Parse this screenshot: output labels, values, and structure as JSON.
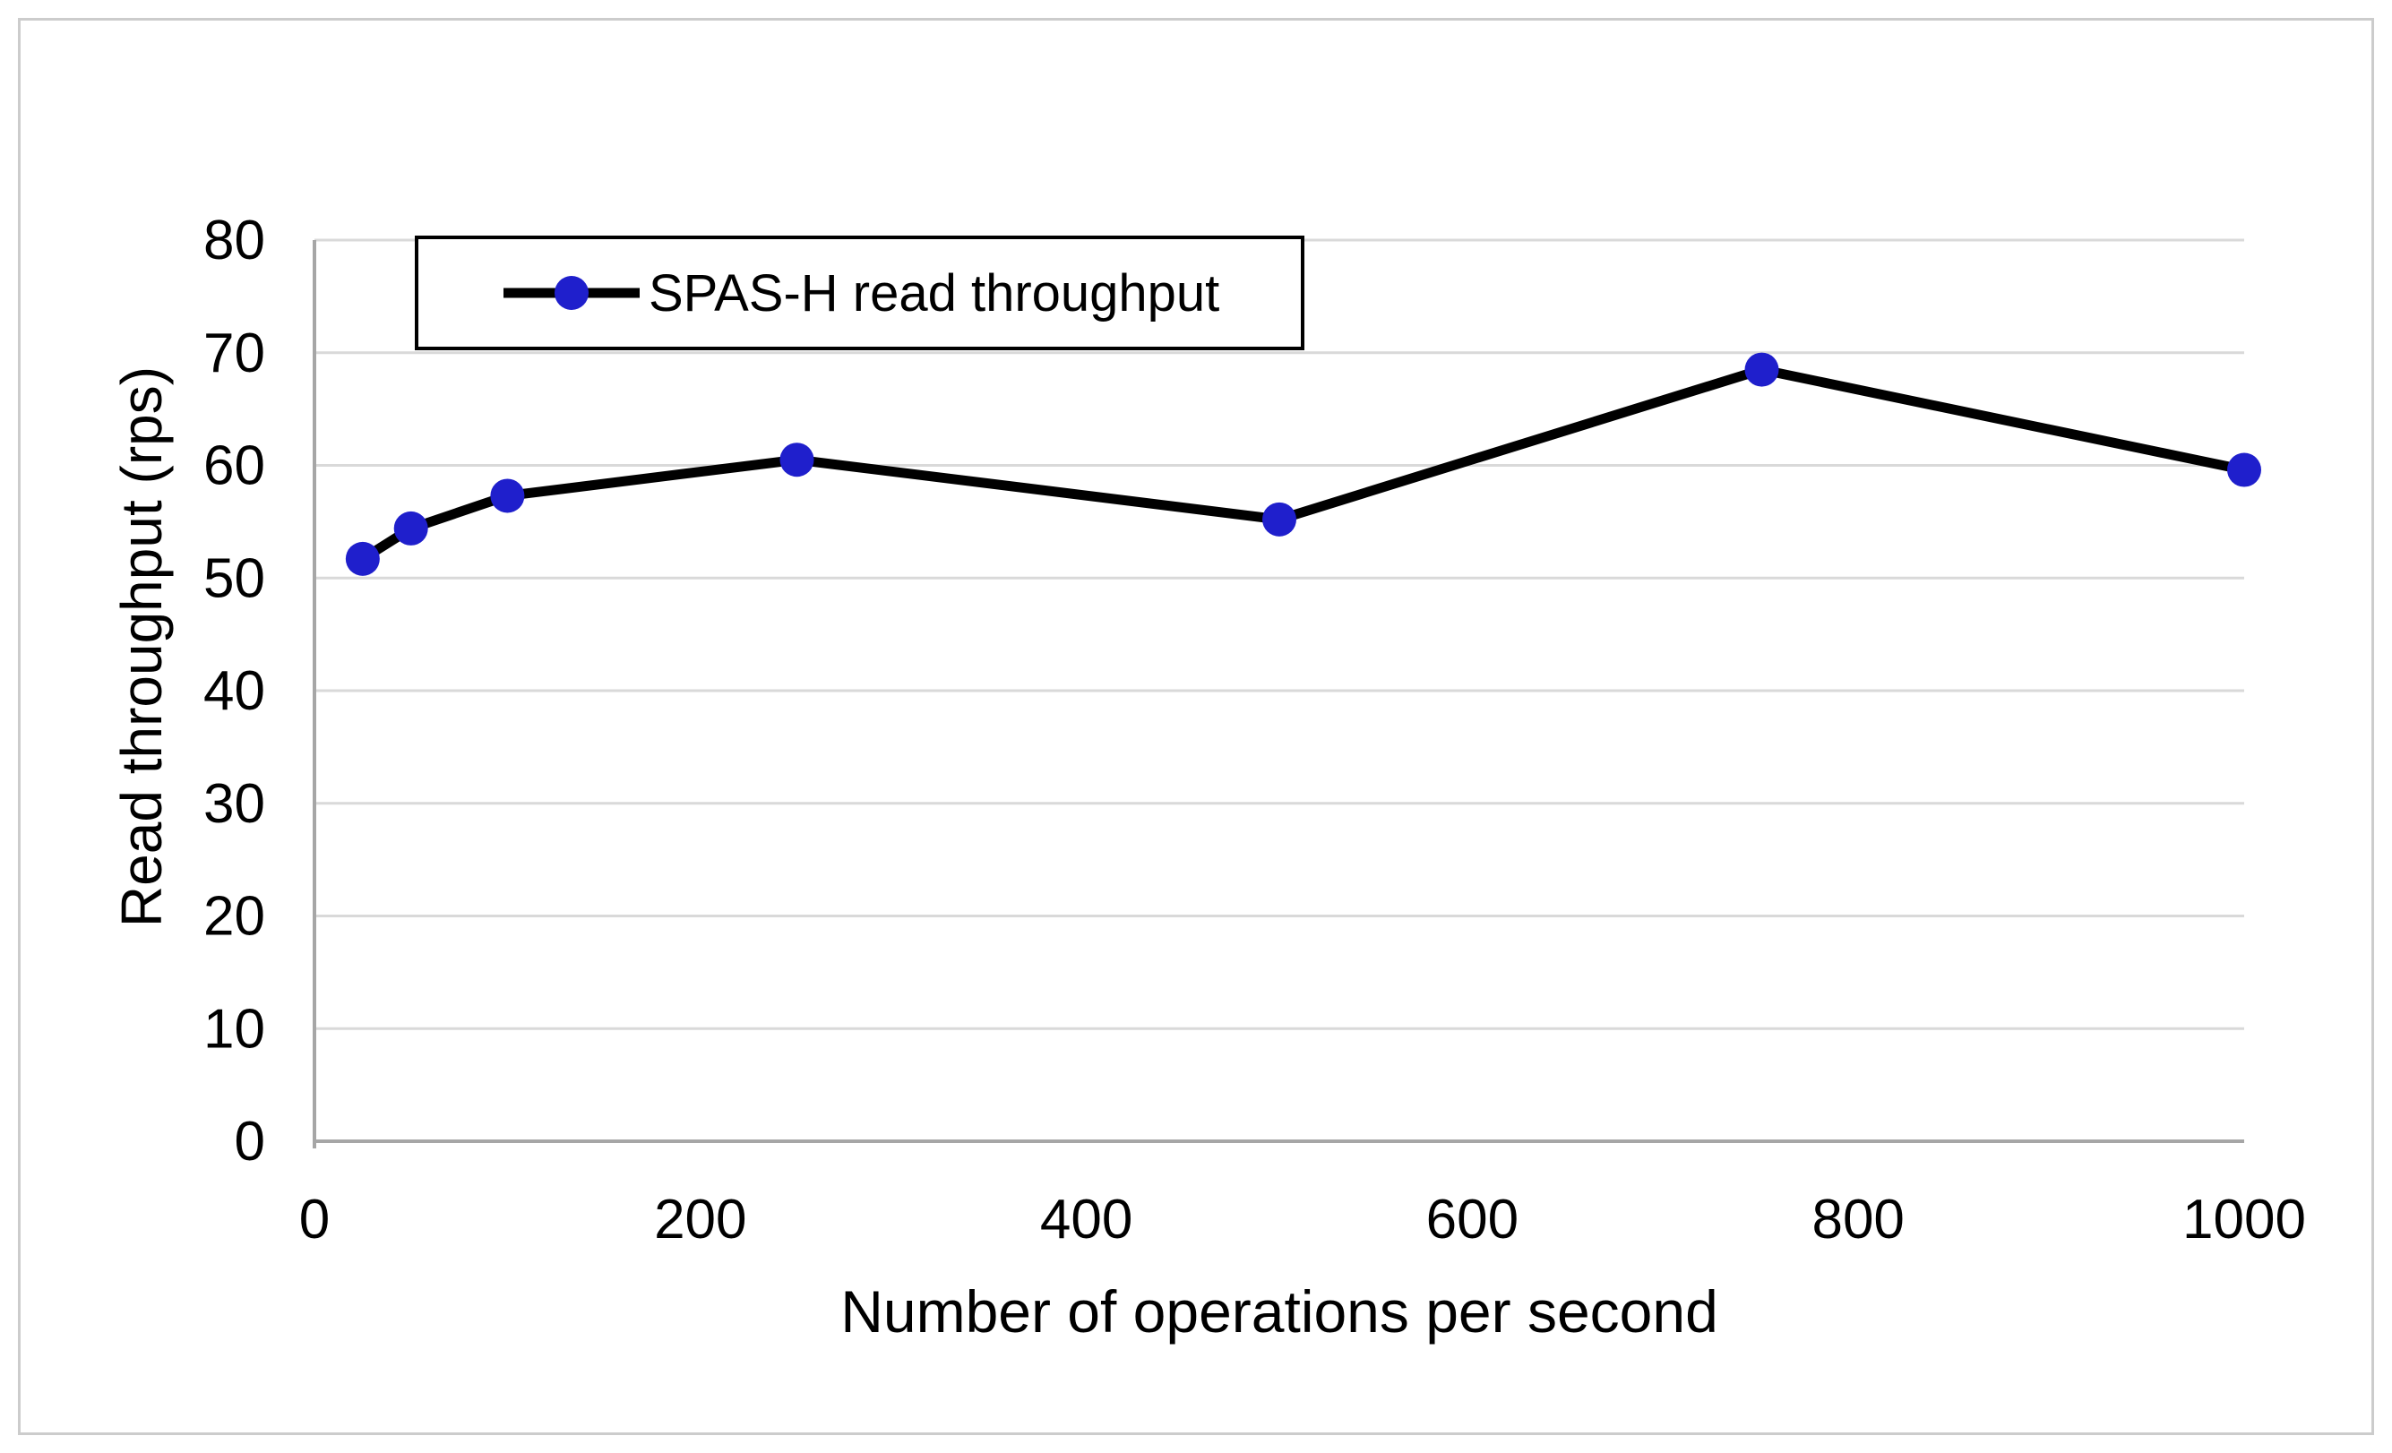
{
  "figure": {
    "background": "#ffffff",
    "border_color": "#cccccc"
  },
  "chart_data": {
    "type": "line",
    "title": "",
    "xlabel": "Number of operations per second",
    "ylabel": "Read throughput (rps)",
    "x": [
      25,
      50,
      100,
      250,
      500,
      750,
      1000
    ],
    "series": [
      {
        "name": "SPAS-H read throughput",
        "values": [
          51.7,
          54.4,
          57.3,
          60.5,
          55.2,
          68.5,
          59.6
        ],
        "line_color": "#000000",
        "marker_color": "#1f1fcc"
      }
    ],
    "xlim": [
      0,
      1000
    ],
    "ylim": [
      0,
      80
    ],
    "x_ticks": [
      0,
      200,
      400,
      600,
      800,
      1000
    ],
    "y_ticks": [
      0,
      10,
      20,
      30,
      40,
      50,
      60,
      70,
      80
    ],
    "grid": "horizontal-only",
    "gridline_color": "#d9d9d9",
    "axis_line_color": "#a6a6a6",
    "legend": {
      "label": "SPAS-H read throughput",
      "position": "top-left-inside",
      "border_color": "#000000"
    }
  }
}
